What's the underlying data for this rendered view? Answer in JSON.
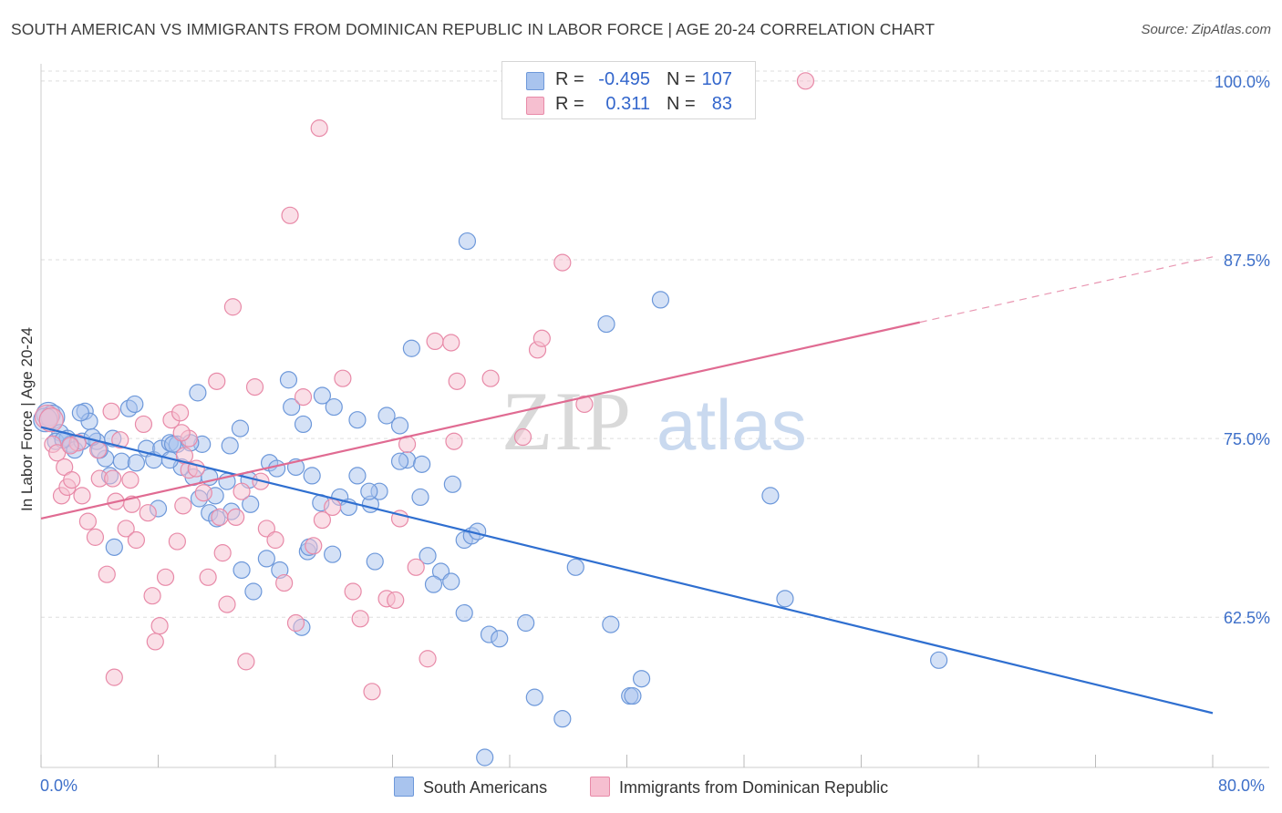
{
  "title": "SOUTH AMERICAN VS IMMIGRANTS FROM DOMINICAN REPUBLIC IN LABOR FORCE | AGE 20-24 CORRELATION CHART",
  "source": "Source: ZipAtlas.com",
  "legend": {
    "rows": [
      {
        "r_label": "R =",
        "r_value": "-0.495",
        "n_label": "N =",
        "n_value": "107",
        "color": "#a9c4ee",
        "border": "#6d98da"
      },
      {
        "r_label": "R =",
        "r_value": "0.311",
        "n_label": "N =",
        "n_value": "83",
        "color": "#f6bfd0",
        "border": "#e88aa8"
      }
    ]
  },
  "chart_data": {
    "type": "scatter",
    "ylabel": "In Labor Force | Age 20-24",
    "x_tick_labels": [
      "0.0%",
      "80.0%"
    ],
    "y_tick_labels": [
      "100.0%",
      "87.5%",
      "75.0%",
      "62.5%"
    ],
    "y_ticks": [
      100.0,
      87.5,
      75.0,
      62.5
    ],
    "xlim": [
      0,
      80
    ],
    "ylim": [
      52.0,
      101.2
    ],
    "watermark": {
      "zip": "ZIP",
      "atlas": "atlas"
    },
    "series": [
      {
        "name": "South Americans",
        "color": "#a9c4ee",
        "edge": "#6d98da",
        "line_color": "#2f6fd0",
        "trend": {
          "x0": 0,
          "y0": 75.8,
          "x1": 80,
          "y1": 55.8,
          "dashed_from": null
        },
        "points": [
          [
            0.5,
            76.7
          ],
          [
            0.8,
            76.5
          ],
          [
            0.3,
            76.3
          ],
          [
            1.3,
            75.4
          ],
          [
            1.0,
            74.8
          ],
          [
            1.8,
            75.0
          ],
          [
            2.0,
            74.6
          ],
          [
            2.3,
            74.2
          ],
          [
            1.5,
            74.9
          ],
          [
            2.8,
            74.8
          ],
          [
            3.0,
            76.9
          ],
          [
            3.3,
            76.2
          ],
          [
            2.7,
            76.8
          ],
          [
            3.8,
            74.8
          ],
          [
            4.4,
            73.6
          ],
          [
            4.7,
            72.4
          ],
          [
            4.9,
            75.0
          ],
          [
            5.5,
            73.4
          ],
          [
            6.0,
            77.1
          ],
          [
            6.4,
            77.4
          ],
          [
            7.2,
            74.3
          ],
          [
            7.7,
            73.5
          ],
          [
            8.2,
            74.3
          ],
          [
            8.8,
            74.7
          ],
          [
            9.3,
            74.6
          ],
          [
            10.4,
            72.3
          ],
          [
            10.8,
            70.8
          ],
          [
            11.5,
            69.8
          ],
          [
            12.0,
            69.4
          ],
          [
            12.9,
            74.5
          ],
          [
            13.6,
            75.7
          ],
          [
            14.2,
            72.1
          ],
          [
            14.3,
            70.4
          ],
          [
            15.6,
            73.3
          ],
          [
            16.1,
            72.9
          ],
          [
            17.1,
            77.2
          ],
          [
            17.9,
            76.0
          ],
          [
            18.5,
            72.4
          ],
          [
            19.1,
            70.5
          ],
          [
            20.4,
            70.9
          ],
          [
            21.6,
            76.3
          ],
          [
            21.6,
            72.4
          ],
          [
            22.5,
            70.4
          ],
          [
            23.1,
            71.3
          ],
          [
            23.6,
            76.6
          ],
          [
            24.5,
            75.9
          ],
          [
            25.0,
            73.5
          ],
          [
            26.0,
            73.2
          ],
          [
            26.4,
            66.8
          ],
          [
            27.3,
            65.7
          ],
          [
            28.1,
            71.8
          ],
          [
            28.9,
            67.9
          ],
          [
            29.1,
            88.8
          ],
          [
            28.9,
            62.8
          ],
          [
            30.6,
            61.3
          ],
          [
            31.3,
            61.0
          ],
          [
            33.1,
            62.1
          ],
          [
            33.7,
            56.9
          ],
          [
            35.6,
            55.4
          ],
          [
            36.5,
            66.0
          ],
          [
            38.6,
            83.0
          ],
          [
            38.9,
            62.0
          ],
          [
            40.2,
            57.0
          ],
          [
            40.4,
            57.0
          ],
          [
            41.0,
            58.2
          ],
          [
            42.3,
            84.7
          ],
          [
            49.8,
            71.0
          ],
          [
            50.8,
            63.8
          ],
          [
            61.3,
            59.5
          ],
          [
            30.3,
            52.7
          ],
          [
            25.3,
            81.3
          ],
          [
            24.5,
            73.4
          ],
          [
            22.8,
            66.4
          ],
          [
            21.0,
            70.2
          ],
          [
            19.9,
            66.9
          ],
          [
            18.2,
            67.1
          ],
          [
            17.4,
            73.0
          ],
          [
            16.3,
            65.8
          ],
          [
            15.4,
            66.6
          ],
          [
            14.5,
            64.3
          ],
          [
            13.7,
            65.8
          ],
          [
            13.0,
            69.9
          ],
          [
            12.7,
            72.0
          ],
          [
            11.9,
            71.0
          ],
          [
            11.5,
            72.3
          ],
          [
            11.0,
            74.6
          ],
          [
            10.7,
            78.2
          ],
          [
            10.2,
            74.7
          ],
          [
            9.6,
            73.0
          ],
          [
            9.0,
            74.6
          ],
          [
            8.8,
            73.5
          ],
          [
            8.0,
            70.1
          ],
          [
            6.5,
            73.3
          ],
          [
            5.0,
            67.4
          ],
          [
            4.0,
            74.2
          ],
          [
            3.5,
            75.1
          ],
          [
            16.9,
            79.1
          ],
          [
            19.2,
            78.0
          ],
          [
            20.0,
            77.2
          ],
          [
            22.4,
            71.3
          ],
          [
            25.9,
            70.9
          ],
          [
            26.8,
            64.8
          ],
          [
            29.4,
            68.2
          ],
          [
            29.8,
            68.5
          ],
          [
            17.8,
            61.8
          ],
          [
            18.3,
            67.4
          ],
          [
            28.0,
            65.0
          ]
        ]
      },
      {
        "name": "Immigrants from Dominican Republic",
        "color": "#f6bfd0",
        "edge": "#e88aa8",
        "line_color": "#e06b92",
        "trend": {
          "x0": 0,
          "y0": 69.4,
          "x1": 80,
          "y1": 87.7,
          "dashed_from": 60.0
        },
        "points": [
          [
            0.4,
            76.5
          ],
          [
            0.8,
            74.6
          ],
          [
            1.1,
            74.0
          ],
          [
            1.4,
            71.0
          ],
          [
            1.6,
            73.0
          ],
          [
            1.8,
            71.6
          ],
          [
            2.1,
            72.1
          ],
          [
            2.5,
            74.7
          ],
          [
            2.8,
            71.0
          ],
          [
            3.2,
            69.2
          ],
          [
            3.7,
            68.1
          ],
          [
            4.0,
            72.2
          ],
          [
            4.5,
            65.5
          ],
          [
            4.8,
            76.9
          ],
          [
            5.1,
            70.6
          ],
          [
            5.4,
            74.9
          ],
          [
            5.8,
            68.7
          ],
          [
            6.2,
            70.4
          ],
          [
            6.5,
            67.9
          ],
          [
            7.0,
            76.0
          ],
          [
            7.3,
            69.8
          ],
          [
            7.6,
            64.0
          ],
          [
            8.1,
            61.9
          ],
          [
            8.5,
            65.3
          ],
          [
            8.9,
            76.3
          ],
          [
            9.3,
            67.8
          ],
          [
            9.5,
            76.8
          ],
          [
            9.8,
            73.8
          ],
          [
            10.1,
            72.8
          ],
          [
            10.6,
            72.9
          ],
          [
            11.1,
            71.2
          ],
          [
            11.4,
            65.3
          ],
          [
            12.0,
            79.0
          ],
          [
            12.4,
            67.0
          ],
          [
            12.7,
            63.4
          ],
          [
            13.1,
            84.2
          ],
          [
            13.7,
            71.3
          ],
          [
            14.0,
            59.4
          ],
          [
            14.6,
            78.6
          ],
          [
            15.0,
            72.0
          ],
          [
            15.4,
            68.7
          ],
          [
            16.0,
            67.9
          ],
          [
            16.6,
            64.9
          ],
          [
            17.0,
            90.6
          ],
          [
            17.4,
            62.1
          ],
          [
            17.9,
            77.9
          ],
          [
            18.6,
            67.5
          ],
          [
            19.0,
            96.7
          ],
          [
            19.2,
            69.3
          ],
          [
            19.9,
            70.2
          ],
          [
            20.6,
            79.2
          ],
          [
            21.3,
            64.3
          ],
          [
            21.8,
            62.4
          ],
          [
            22.6,
            57.3
          ],
          [
            23.6,
            63.8
          ],
          [
            24.2,
            63.7
          ],
          [
            24.5,
            69.4
          ],
          [
            25.0,
            74.6
          ],
          [
            25.6,
            66.0
          ],
          [
            26.4,
            59.6
          ],
          [
            26.9,
            81.8
          ],
          [
            28.0,
            81.7
          ],
          [
            28.2,
            74.8
          ],
          [
            28.4,
            79.0
          ],
          [
            30.7,
            79.2
          ],
          [
            32.9,
            75.1
          ],
          [
            33.9,
            81.2
          ],
          [
            34.2,
            82.0
          ],
          [
            35.6,
            87.3
          ],
          [
            37.1,
            77.4
          ],
          [
            52.2,
            100.0
          ],
          [
            2.0,
            74.5
          ],
          [
            5.0,
            58.3
          ],
          [
            7.8,
            60.8
          ],
          [
            10.1,
            75.0
          ],
          [
            9.6,
            75.4
          ],
          [
            6.1,
            72.1
          ],
          [
            3.9,
            74.2
          ],
          [
            12.2,
            69.5
          ],
          [
            13.3,
            69.5
          ],
          [
            4.9,
            72.2
          ],
          [
            0.7,
            76.3
          ],
          [
            9.7,
            70.3
          ]
        ]
      }
    ]
  }
}
